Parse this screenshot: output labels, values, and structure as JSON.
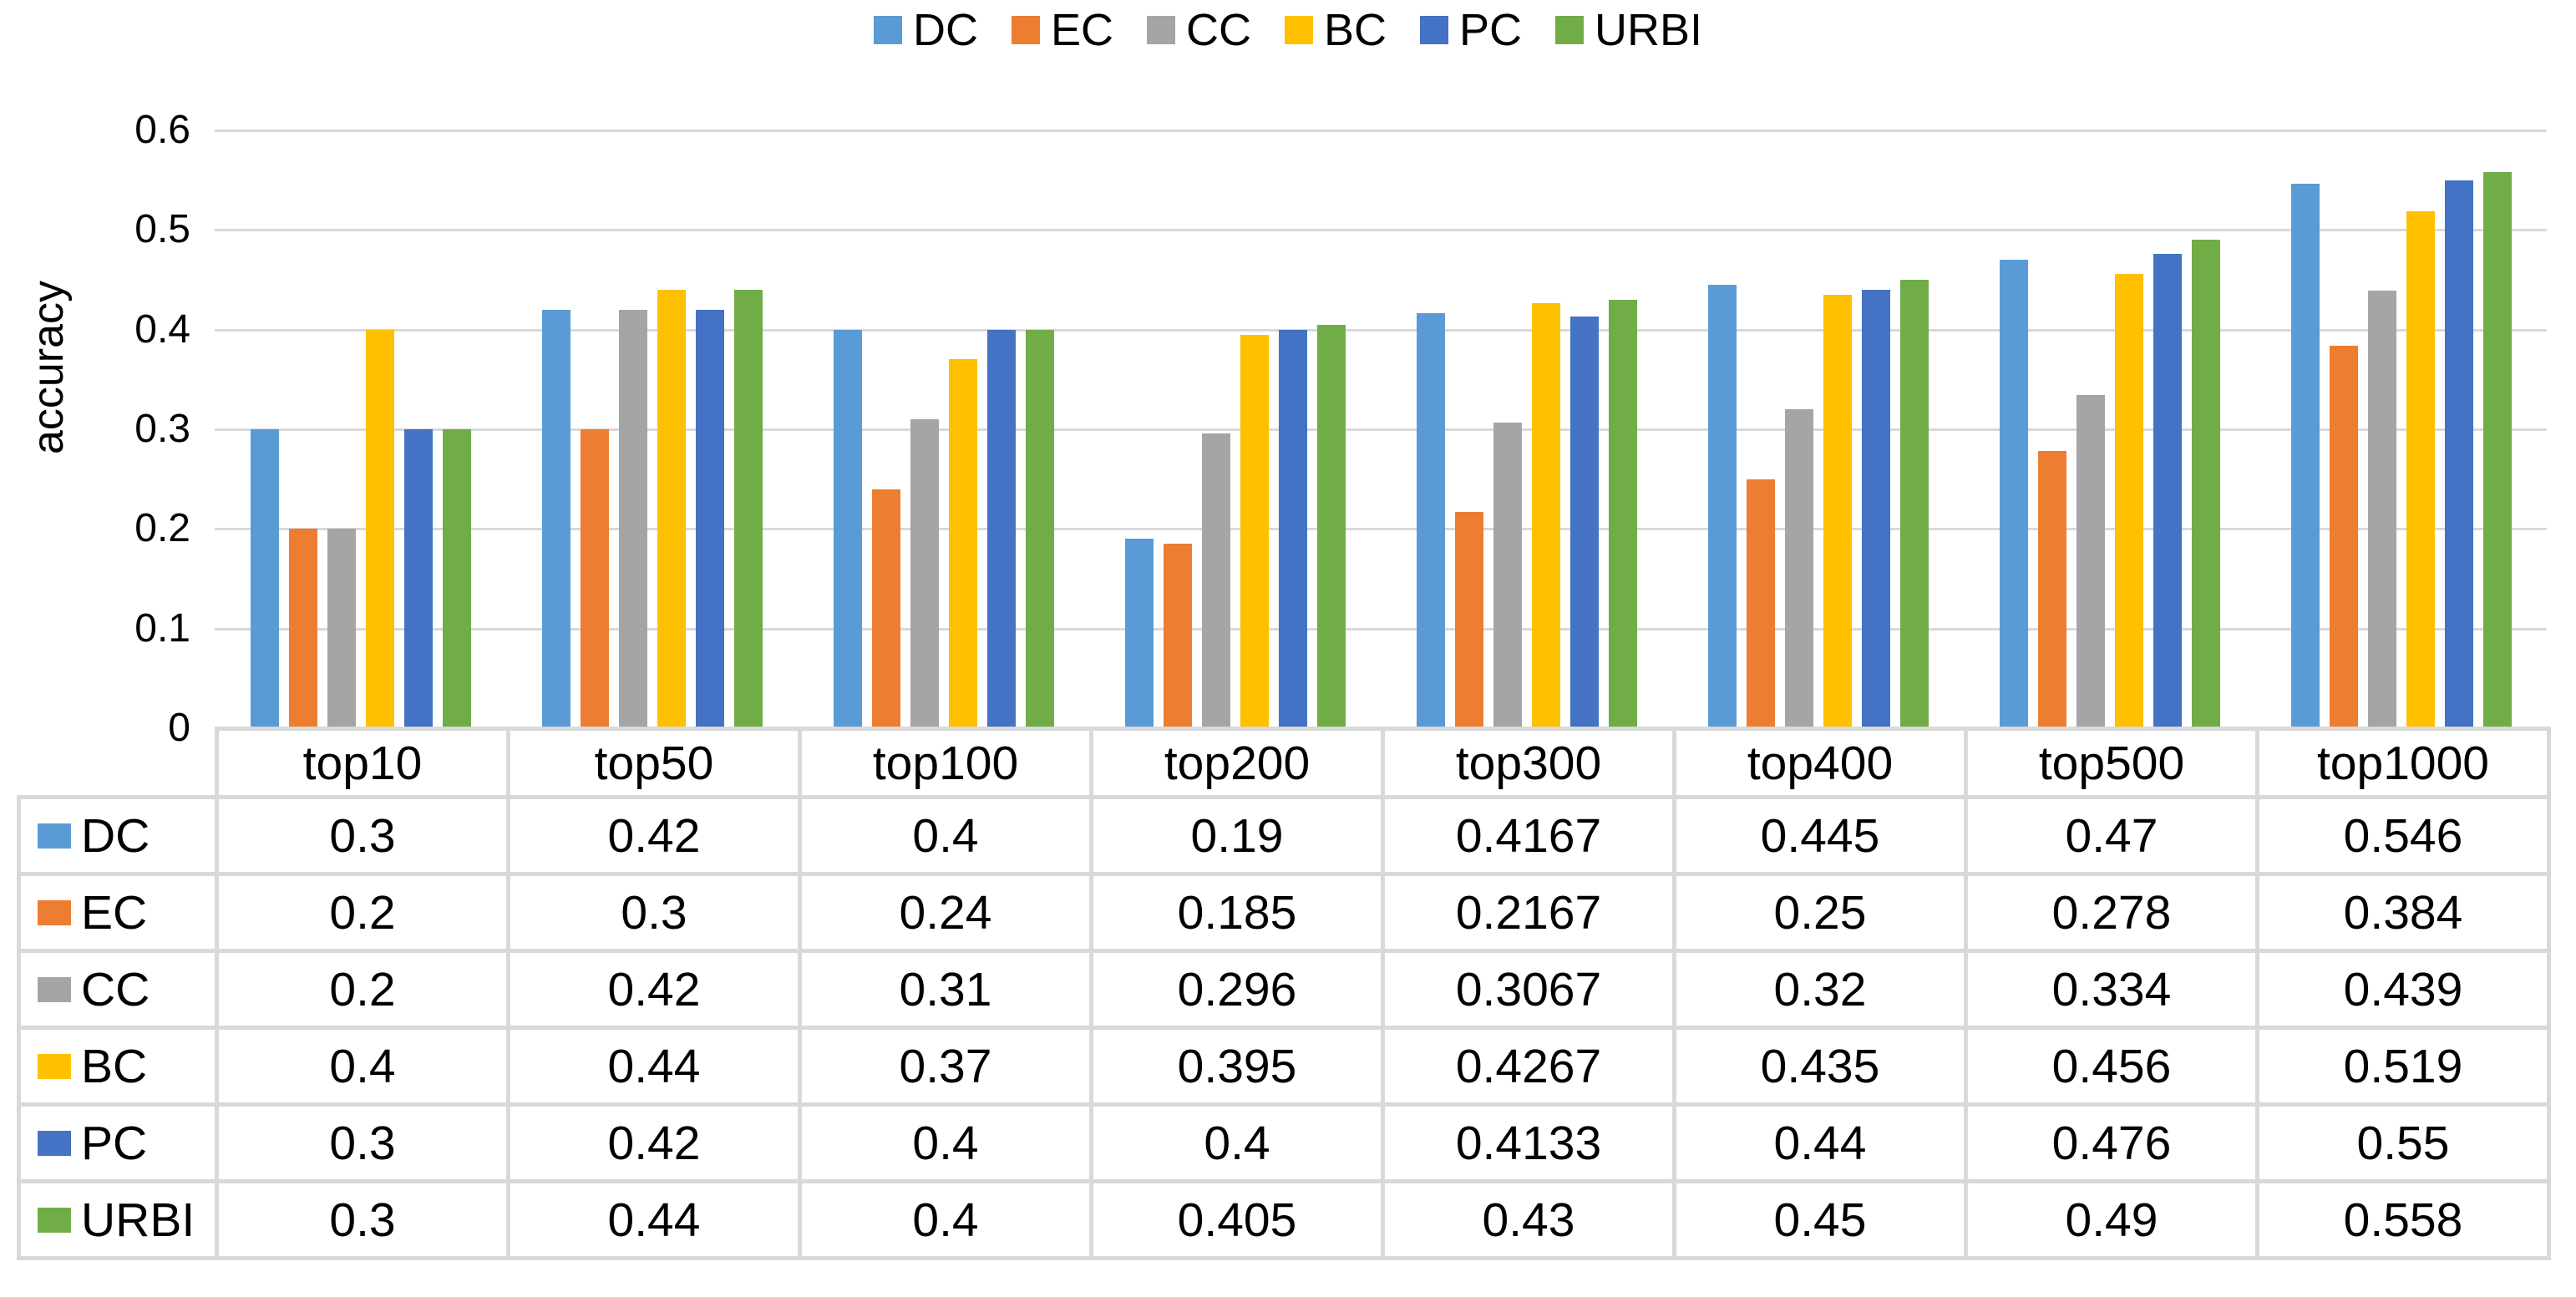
{
  "chart_data": {
    "type": "bar",
    "title": "",
    "ylabel": "accuracy",
    "ylim": [
      0,
      0.6
    ],
    "yticks": [
      0,
      0.1,
      0.2,
      0.3,
      0.4,
      0.5,
      0.6
    ],
    "grid": "horizontal",
    "legend_position": "top",
    "data_table_shown": true,
    "categories": [
      "top10",
      "top50",
      "top100",
      "top200",
      "top300",
      "top400",
      "top500",
      "top1000"
    ],
    "series": [
      {
        "name": "DC",
        "color": "#5B9BD5",
        "values": [
          0.3,
          0.42,
          0.4,
          0.19,
          0.4167,
          0.445,
          0.47,
          0.546
        ]
      },
      {
        "name": "EC",
        "color": "#ED7D31",
        "values": [
          0.2,
          0.3,
          0.24,
          0.185,
          0.2167,
          0.25,
          0.278,
          0.384
        ]
      },
      {
        "name": "CC",
        "color": "#A5A5A5",
        "values": [
          0.2,
          0.42,
          0.31,
          0.296,
          0.3067,
          0.32,
          0.334,
          0.439
        ]
      },
      {
        "name": "BC",
        "color": "#FFC000",
        "values": [
          0.4,
          0.44,
          0.37,
          0.395,
          0.4267,
          0.435,
          0.456,
          0.519
        ]
      },
      {
        "name": "PC",
        "color": "#4472C4",
        "values": [
          0.3,
          0.42,
          0.4,
          0.4,
          0.4133,
          0.44,
          0.476,
          0.55
        ]
      },
      {
        "name": "URBI",
        "color": "#70AD47",
        "values": [
          0.3,
          0.44,
          0.4,
          0.405,
          0.43,
          0.45,
          0.49,
          0.558
        ]
      }
    ]
  },
  "colors": {
    "background": "#FFFFFF",
    "gridline": "#D9D9D9",
    "table_border": "#D9D9D9",
    "text": "#000000"
  }
}
